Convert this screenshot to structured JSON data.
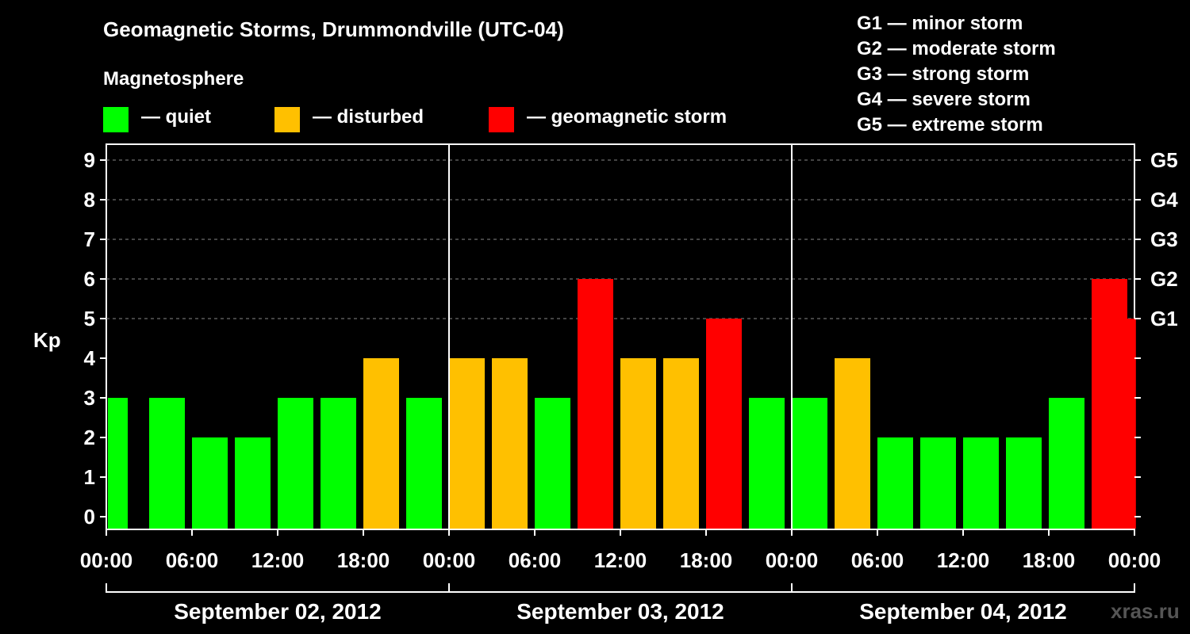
{
  "chart_data": {
    "type": "bar",
    "title": "Geomagnetic Storms, Drummondville (UTC-04)",
    "subtitle": "Magnetosphere",
    "ylabel": "Kp",
    "ylim": [
      0,
      9
    ],
    "yticks": [
      "0",
      "1",
      "2",
      "3",
      "4",
      "5",
      "6",
      "7",
      "8",
      "9"
    ],
    "right_ticks": [
      {
        "label": "G1",
        "value": 5
      },
      {
        "label": "G2",
        "value": 6
      },
      {
        "label": "G3",
        "value": 7
      },
      {
        "label": "G4",
        "value": 8
      },
      {
        "label": "G5",
        "value": 9
      }
    ],
    "xticks": [
      "00:00",
      "06:00",
      "12:00",
      "18:00",
      "00:00",
      "06:00",
      "12:00",
      "18:00",
      "00:00",
      "06:00",
      "12:00",
      "18:00",
      "00:00"
    ],
    "x_range_hours": [
      0,
      72
    ],
    "days": [
      "September 02, 2012",
      "September 03, 2012",
      "September 04, 2012"
    ],
    "bar_hours": [
      0,
      3,
      6,
      9,
      12,
      15,
      18,
      21,
      24,
      27,
      30,
      33,
      36,
      39,
      42,
      45,
      48,
      51,
      54,
      57,
      60,
      63,
      66,
      69,
      71.5
    ],
    "bar_durations": [
      1.5,
      2.5,
      2.5,
      2.5,
      2.5,
      2.5,
      2.5,
      2.5,
      2.5,
      2.5,
      2.5,
      2.5,
      2.5,
      2.5,
      2.5,
      2.5,
      2.5,
      2.5,
      2.5,
      2.5,
      2.5,
      2.5,
      2.5,
      2.5,
      0.6
    ],
    "values": [
      3,
      3,
      2,
      2,
      3,
      3,
      4,
      3,
      4,
      4,
      3,
      6,
      4,
      4,
      5,
      3,
      3,
      4,
      2,
      2,
      2,
      2,
      3,
      6,
      5
    ],
    "legend": [
      {
        "label": "— quiet",
        "color": "#00ff00"
      },
      {
        "label": "— disturbed",
        "color": "#ffc000"
      },
      {
        "label": "— geomagnetic storm",
        "color": "#ff0000"
      }
    ],
    "g_legend": [
      "G1 — minor storm",
      "G2 — moderate storm",
      "G3 — strong storm",
      "G4 — severe storm",
      "G5 — extreme storm"
    ],
    "colors": {
      "quiet": "#00ff00",
      "disturbed": "#ffc000",
      "storm": "#ff0000"
    }
  },
  "watermark": "xras.ru"
}
